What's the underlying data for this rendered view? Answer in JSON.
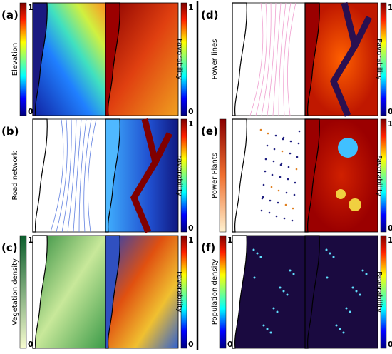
{
  "panels": [
    {
      "label": "(a)",
      "left_title": "Elevation",
      "right_title": "Favorability",
      "left_ticks": [
        1,
        0
      ],
      "right_ticks": [
        1,
        0
      ]
    },
    {
      "label": "(b)",
      "left_title": "Road network",
      "right_title": "Favorability",
      "right_ticks": [
        1,
        0
      ]
    },
    {
      "label": "(c)",
      "left_title": "Vegetation density",
      "right_title": "Favorability",
      "left_ticks": [
        1,
        0
      ],
      "right_ticks": [
        1,
        0
      ]
    },
    {
      "label": "(d)",
      "left_title": "Power lines",
      "right_title": "Favorability",
      "right_ticks": [
        1,
        0
      ]
    },
    {
      "label": "(e)",
      "left_title": "Power Plants",
      "right_title": "Favorability",
      "right_ticks": [
        1,
        0
      ]
    },
    {
      "label": "(f)",
      "left_title": "Population density",
      "right_title": "Favorability",
      "left_ticks": [
        1,
        0
      ],
      "right_ticks": [
        1,
        0
      ]
    }
  ]
}
